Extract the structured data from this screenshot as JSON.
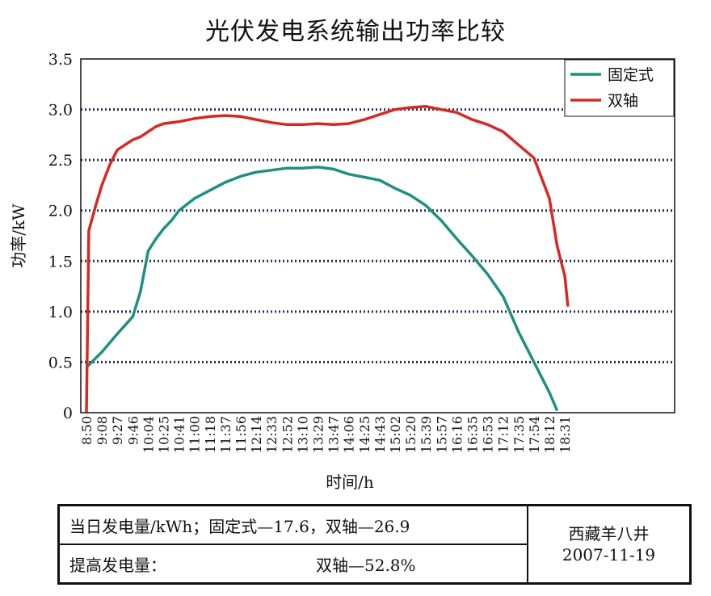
{
  "chart_data": {
    "type": "line",
    "title": "光伏发电系统输出功率比较",
    "xlabel": "时间/h",
    "ylabel": "功率/kW",
    "ylim": [
      0,
      3.5
    ],
    "yticks": [
      "0",
      "0.5",
      "1.0",
      "1.5",
      "2.0",
      "2.5",
      "3.0",
      "3.5"
    ],
    "xticks": [
      "8:50",
      "9:08",
      "9:27",
      "9:46",
      "10:04",
      "10:25",
      "10:41",
      "11:00",
      "11:18",
      "11:37",
      "11:56",
      "12:14",
      "12:33",
      "12:52",
      "13:10",
      "13:29",
      "13:47",
      "14:06",
      "14:25",
      "14:43",
      "15:02",
      "15:20",
      "15:39",
      "15:57",
      "16:16",
      "16:35",
      "16:53",
      "17:12",
      "17:35",
      "17:54",
      "18:12",
      "18:31"
    ],
    "grid": "horizontal dotted",
    "legend_position": "top-right",
    "series": [
      {
        "name": "固定式",
        "color": "#1f8f82",
        "points": [
          [
            0,
            0.45
          ],
          [
            1,
            0.6
          ],
          [
            2,
            0.78
          ],
          [
            3,
            0.95
          ],
          [
            3.5,
            1.2
          ],
          [
            4,
            1.6
          ],
          [
            4.5,
            1.72
          ],
          [
            5,
            1.82
          ],
          [
            5.5,
            1.9
          ],
          [
            6,
            2.0
          ],
          [
            7,
            2.12
          ],
          [
            8,
            2.2
          ],
          [
            9,
            2.28
          ],
          [
            10,
            2.34
          ],
          [
            11,
            2.38
          ],
          [
            12,
            2.4
          ],
          [
            13,
            2.42
          ],
          [
            14,
            2.42
          ],
          [
            15,
            2.43
          ],
          [
            16,
            2.41
          ],
          [
            17,
            2.36
          ],
          [
            18,
            2.33
          ],
          [
            19,
            2.3
          ],
          [
            20,
            2.22
          ],
          [
            21,
            2.15
          ],
          [
            22,
            2.05
          ],
          [
            23,
            1.9
          ],
          [
            24,
            1.72
          ],
          [
            25,
            1.55
          ],
          [
            26,
            1.37
          ],
          [
            27,
            1.15
          ],
          [
            28,
            0.8
          ],
          [
            29,
            0.5
          ],
          [
            30,
            0.2
          ],
          [
            30.5,
            0.02
          ]
        ]
      },
      {
        "name": "双轴",
        "color": "#d42a23",
        "points": [
          [
            0,
            0
          ],
          [
            0.15,
            1.8
          ],
          [
            0.6,
            2.05
          ],
          [
            1,
            2.25
          ],
          [
            1.5,
            2.45
          ],
          [
            2,
            2.6
          ],
          [
            2.5,
            2.65
          ],
          [
            3,
            2.7
          ],
          [
            3.5,
            2.73
          ],
          [
            4,
            2.78
          ],
          [
            4.5,
            2.83
          ],
          [
            5,
            2.86
          ],
          [
            6,
            2.88
          ],
          [
            7,
            2.91
          ],
          [
            8,
            2.93
          ],
          [
            9,
            2.94
          ],
          [
            10,
            2.93
          ],
          [
            11,
            2.9
          ],
          [
            12,
            2.87
          ],
          [
            13,
            2.85
          ],
          [
            14,
            2.85
          ],
          [
            15,
            2.86
          ],
          [
            16,
            2.85
          ],
          [
            17,
            2.86
          ],
          [
            18,
            2.9
          ],
          [
            19,
            2.95
          ],
          [
            20,
            3.0
          ],
          [
            21,
            3.02
          ],
          [
            22,
            3.03
          ],
          [
            23,
            3.0
          ],
          [
            24,
            2.97
          ],
          [
            25,
            2.9
          ],
          [
            26,
            2.85
          ],
          [
            27,
            2.78
          ],
          [
            28,
            2.65
          ],
          [
            29,
            2.52
          ],
          [
            30,
            2.12
          ],
          [
            30.5,
            1.65
          ],
          [
            31,
            1.35
          ],
          [
            31.2,
            1.05
          ]
        ]
      }
    ]
  },
  "summary": {
    "row1": "当日发电量/kWh；固定式—17.6，双轴—26.9",
    "row2_label": "提高发电量：",
    "row2_value": "双轴—52.8%",
    "location": "西藏羊八井",
    "date": "2007-11-19"
  }
}
